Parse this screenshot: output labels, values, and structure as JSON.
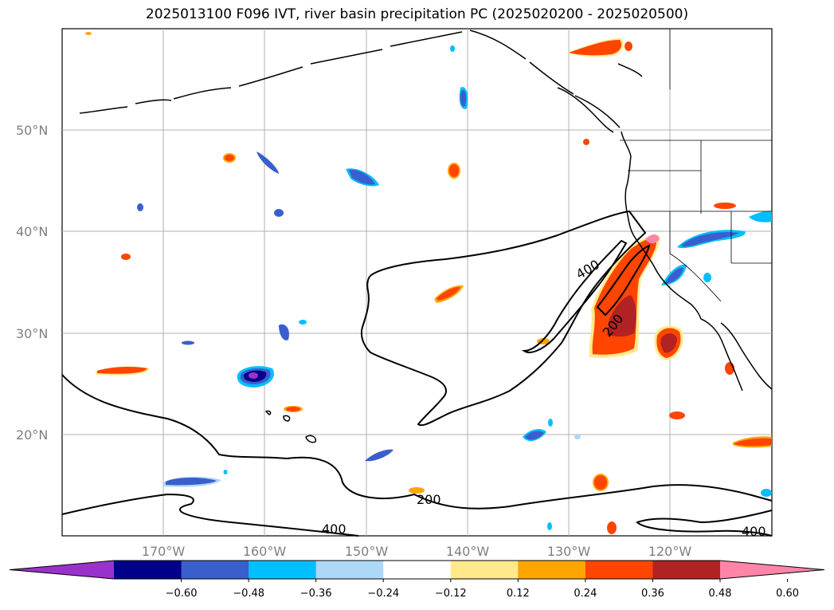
{
  "title": "2025013100 F096 IVT, river basin precipitation PC (2025020200 - 2025020500)",
  "lat_ticks": [
    "50°N",
    "40°N",
    "30°N",
    "20°N"
  ],
  "lon_ticks": [
    "170°W",
    "160°W",
    "150°W",
    "140°W",
    "130°W",
    "120°W"
  ],
  "contour_labels": [
    "400",
    "200",
    "200",
    "400",
    "400"
  ],
  "colorbar": {
    "ticks": [
      "−0.60",
      "−0.48",
      "−0.36",
      "−0.24",
      "−0.12",
      "0.12",
      "0.24",
      "0.36",
      "0.48",
      "0.60"
    ],
    "colors": [
      "#9932cc",
      "#00008b",
      "#3a5fcd",
      "#00bfff",
      "#add8f7",
      "#ffffff",
      "#ffe98a",
      "#ffa500",
      "#ff4500",
      "#b22222",
      "#ff85a8"
    ]
  }
}
